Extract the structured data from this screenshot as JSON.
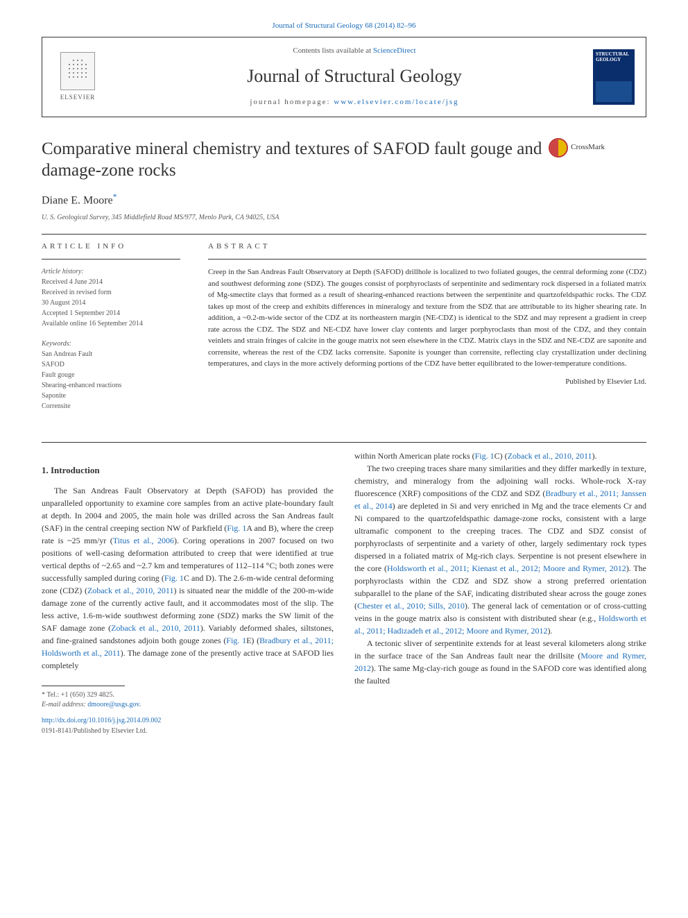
{
  "topLink": "Journal of Structural Geology 68 (2014) 82–96",
  "header": {
    "contentsLine1": "Contents lists available at ",
    "contentsLink": "ScienceDirect",
    "journalName": "Journal of Structural Geology",
    "homepageLabel": "journal homepage: ",
    "homepageUrl": "www.elsevier.com/locate/jsg",
    "elsevierLabel": "ELSEVIER",
    "coverTitle": "STRUCTURAL GEOLOGY"
  },
  "crossmark": "CrossMark",
  "title": "Comparative mineral chemistry and textures of SAFOD fault gouge and damage-zone rocks",
  "author": "Diane E. Moore",
  "authorMark": "*",
  "affiliation": "U. S. Geological Survey, 345 Middlefield Road MS/977, Menlo Park, CA 94025, USA",
  "articleInfo": {
    "heading": "ARTICLE INFO",
    "historyLabel": "Article history:",
    "history": [
      "Received 4 June 2014",
      "Received in revised form",
      "30 August 2014",
      "Accepted 1 September 2014",
      "Available online 16 September 2014"
    ],
    "keywordsLabel": "Keywords:",
    "keywords": [
      "San Andreas Fault",
      "SAFOD",
      "Fault gouge",
      "Shearing-enhanced reactions",
      "Saponite",
      "Corrensite"
    ]
  },
  "abstract": {
    "heading": "ABSTRACT",
    "text": "Creep in the San Andreas Fault Observatory at Depth (SAFOD) drillhole is localized to two foliated gouges, the central deforming zone (CDZ) and southwest deforming zone (SDZ). The gouges consist of porphyroclasts of serpentinite and sedimentary rock dispersed in a foliated matrix of Mg-smectite clays that formed as a result of shearing-enhanced reactions between the serpentinite and quartzofeldspathic rocks. The CDZ takes up most of the creep and exhibits differences in mineralogy and texture from the SDZ that are attributable to its higher shearing rate. In addition, a ~0.2-m-wide sector of the CDZ at its northeastern margin (NE-CDZ) is identical to the SDZ and may represent a gradient in creep rate across the CDZ. The SDZ and NE-CDZ have lower clay contents and larger porphyroclasts than most of the CDZ, and they contain veinlets and strain fringes of calcite in the gouge matrix not seen elsewhere in the CDZ. Matrix clays in the SDZ and NE-CDZ are saponite and corrensite, whereas the rest of the CDZ lacks corrensite. Saponite is younger than corrensite, reflecting clay crystallization under declining temperatures, and clays in the more actively deforming portions of the CDZ have better equilibrated to the lower-temperature conditions.",
    "copyright": "Published by Elsevier Ltd."
  },
  "section1": {
    "heading": "1. Introduction",
    "p1a": "The San Andreas Fault Observatory at Depth (SAFOD) has provided the unparalleled opportunity to examine core samples from an active plate-boundary fault at depth. In 2004 and 2005, the main hole was drilled across the San Andreas fault (SAF) in the central creeping section NW of Parkfield (",
    "p1_fig1a": "Fig. 1",
    "p1b": "A and B), where the creep rate is ~25 mm/yr (",
    "p1_ref1": "Titus et al., 2006",
    "p1c": "). Coring operations in 2007 focused on two positions of well-casing deformation attributed to creep that were identified at true vertical depths of ~2.65 and ~2.7 km and temperatures of 112–114 °C; both zones were successfully sampled during coring (",
    "p1_fig1c": "Fig. 1",
    "p1d": "C and D). The 2.6-m-wide central deforming zone (CDZ) (",
    "p1_ref2": "Zoback et al., 2010, 2011",
    "p1e": ") is situated near the middle of the 200-m-wide damage zone of the currently active fault, and it accommodates most of the slip. The less active, 1.6-m-wide southwest deforming zone (SDZ) marks the SW limit of the SAF damage zone (",
    "p1_ref3": "Zoback et al., 2010, 2011",
    "p1f": "). Variably deformed shales, siltstones, and fine-grained sandstones adjoin both gouge zones (",
    "p1_fig1e": "Fig. 1",
    "p1g": "E) (",
    "p1_ref4": "Bradbury et al., 2011; Holdsworth et al., 2011",
    "p1h": "). The damage zone of the presently active trace at SAFOD lies completely",
    "p1i": " within North American plate rocks (",
    "p1_fig1c2": "Fig. 1",
    "p1j": "C) (",
    "p1_ref5": "Zoback et al., 2010, 2011",
    "p1k": ").",
    "p2a": "The two creeping traces share many similarities and they differ markedly in texture, chemistry, and mineralogy from the adjoining wall rocks. Whole-rock X-ray fluorescence (XRF) compositions of the CDZ and SDZ (",
    "p2_ref1": "Bradbury et al., 2011; Janssen et al., 2014",
    "p2b": ") are depleted in Si and very enriched in Mg and the trace elements Cr and Ni compared to the quartzofeldspathic damage-zone rocks, consistent with a large ultramafic component to the creeping traces. The CDZ and SDZ consist of porphyroclasts of serpentinite and a variety of other, largely sedimentary rock types dispersed in a foliated matrix of Mg-rich clays. Serpentine is not present elsewhere in the core (",
    "p2_ref2": "Holdsworth et al., 2011; Kienast et al., 2012; Moore and Rymer, 2012",
    "p2c": "). The porphyroclasts within the CDZ and SDZ show a strong preferred orientation subparallel to the plane of the SAF, indicating distributed shear across the gouge zones (",
    "p2_ref3": "Chester et al., 2010; Sills, 2010",
    "p2d": "). The general lack of cementation or of cross-cutting veins in the gouge matrix also is consistent with distributed shear (e.g., ",
    "p2_ref4": "Holdsworth et al., 2011; Hadizadeh et al., 2012; Moore and Rymer, 2012",
    "p2e": ").",
    "p3a": "A tectonic sliver of serpentinite extends for at least several kilometers along strike in the surface trace of the San Andreas fault near the drillsite (",
    "p3_ref1": "Moore and Rymer, 2012",
    "p3b": "). The same Mg-clay-rich gouge as found in the SAFOD core was identified along the faulted"
  },
  "footnote": {
    "telLabel": "* Tel.: ",
    "tel": "+1 (650) 329 4825.",
    "emailLabel": "E-mail address: ",
    "email": "dmoore@usgs.gov",
    "emailSuffix": "."
  },
  "doi": {
    "url": "http://dx.doi.org/10.1016/j.jsg.2014.09.002",
    "issn": "0191-8141/Published by Elsevier Ltd."
  },
  "colors": {
    "link": "#1a6bb8",
    "text": "#333333",
    "muted": "#555555",
    "coverBg": "#0a2d6b",
    "border": "#333333"
  }
}
